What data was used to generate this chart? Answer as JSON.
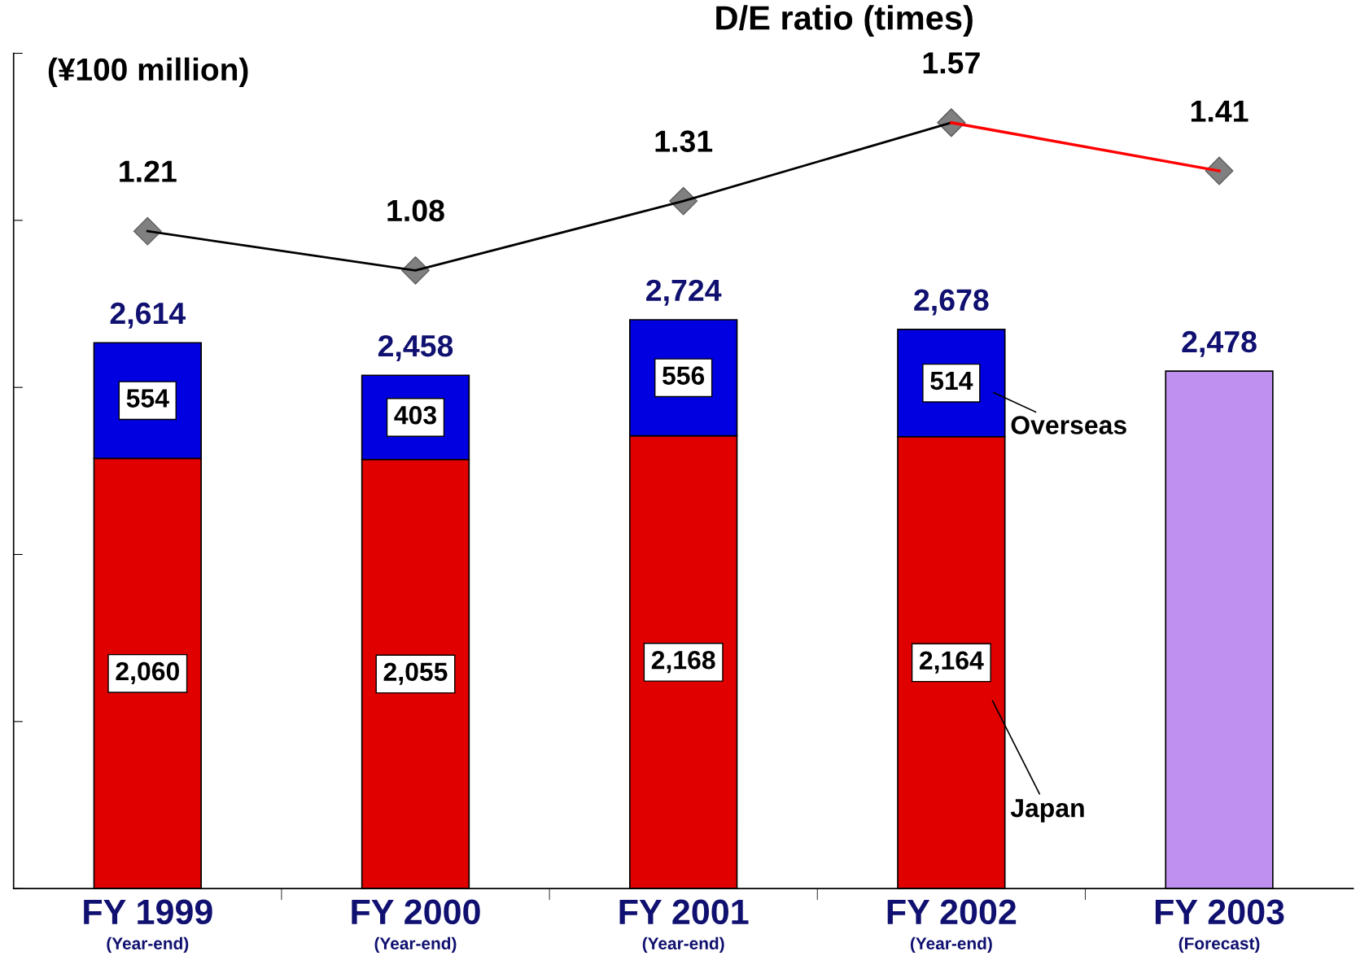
{
  "chart_data": {
    "type": "bar",
    "stacked": true,
    "y2label": "D/E ratio (times)",
    "ylabel": "(¥100 million)",
    "categories": [
      "FY 1999\n(Year-end)",
      "FY 2000\n(Year-end)",
      "FY 2001\n(Year-end)",
      "FY 2002\n(Year-end)",
      "FY 2003\n(Forecast)"
    ],
    "ylim": [
      0,
      4000
    ],
    "yticks": [
      {
        "value": 0,
        "label": null
      },
      {
        "value": 800,
        "label": null
      },
      {
        "value": 1600,
        "label": null
      },
      {
        "value": 2400,
        "label": null
      },
      {
        "value": 3200,
        "label": null
      },
      {
        "value": 4000,
        "label": null
      }
    ],
    "y2lim": [
      -0.97,
      1.8
    ],
    "tick_labels": "x",
    "grid": false,
    "legend": "right",
    "series": [
      {
        "name": "Japan",
        "color": "#e00000",
        "values": [
          2060,
          2055,
          2168,
          2164,
          null
        ],
        "value_labels": [
          "2,060",
          "2,055",
          "2,168",
          "2,164",
          null
        ]
      },
      {
        "name": "Overseas",
        "color": "#0000e0",
        "values": [
          554,
          403,
          556,
          514,
          null
        ],
        "value_labels": [
          "554",
          "403",
          "556",
          "514",
          null
        ]
      },
      {
        "color": "#c090f0",
        "values": [
          null,
          null,
          null,
          null,
          2478
        ],
        "value_labels": [
          null,
          null,
          null,
          null,
          "2,478"
        ]
      },
      {
        "type": "line",
        "axis": "y2",
        "color": "#000000",
        "marker": "diamond",
        "values": [
          1.21,
          1.08,
          1.31,
          1.57,
          null
        ],
        "value_labels": [
          "1.21",
          "1.08",
          "1.31",
          "1.57",
          null
        ]
      },
      {
        "type": "line",
        "axis": "y2",
        "color": "#ff0000",
        "marker": "diamond",
        "values": [
          null,
          null,
          null,
          1.57,
          1.41
        ],
        "value_labels": [
          null,
          null,
          null,
          null,
          "1.41"
        ]
      }
    ],
    "totals": [
      "2,614",
      "2,458",
      "2,724",
      "2,678",
      null
    ]
  }
}
